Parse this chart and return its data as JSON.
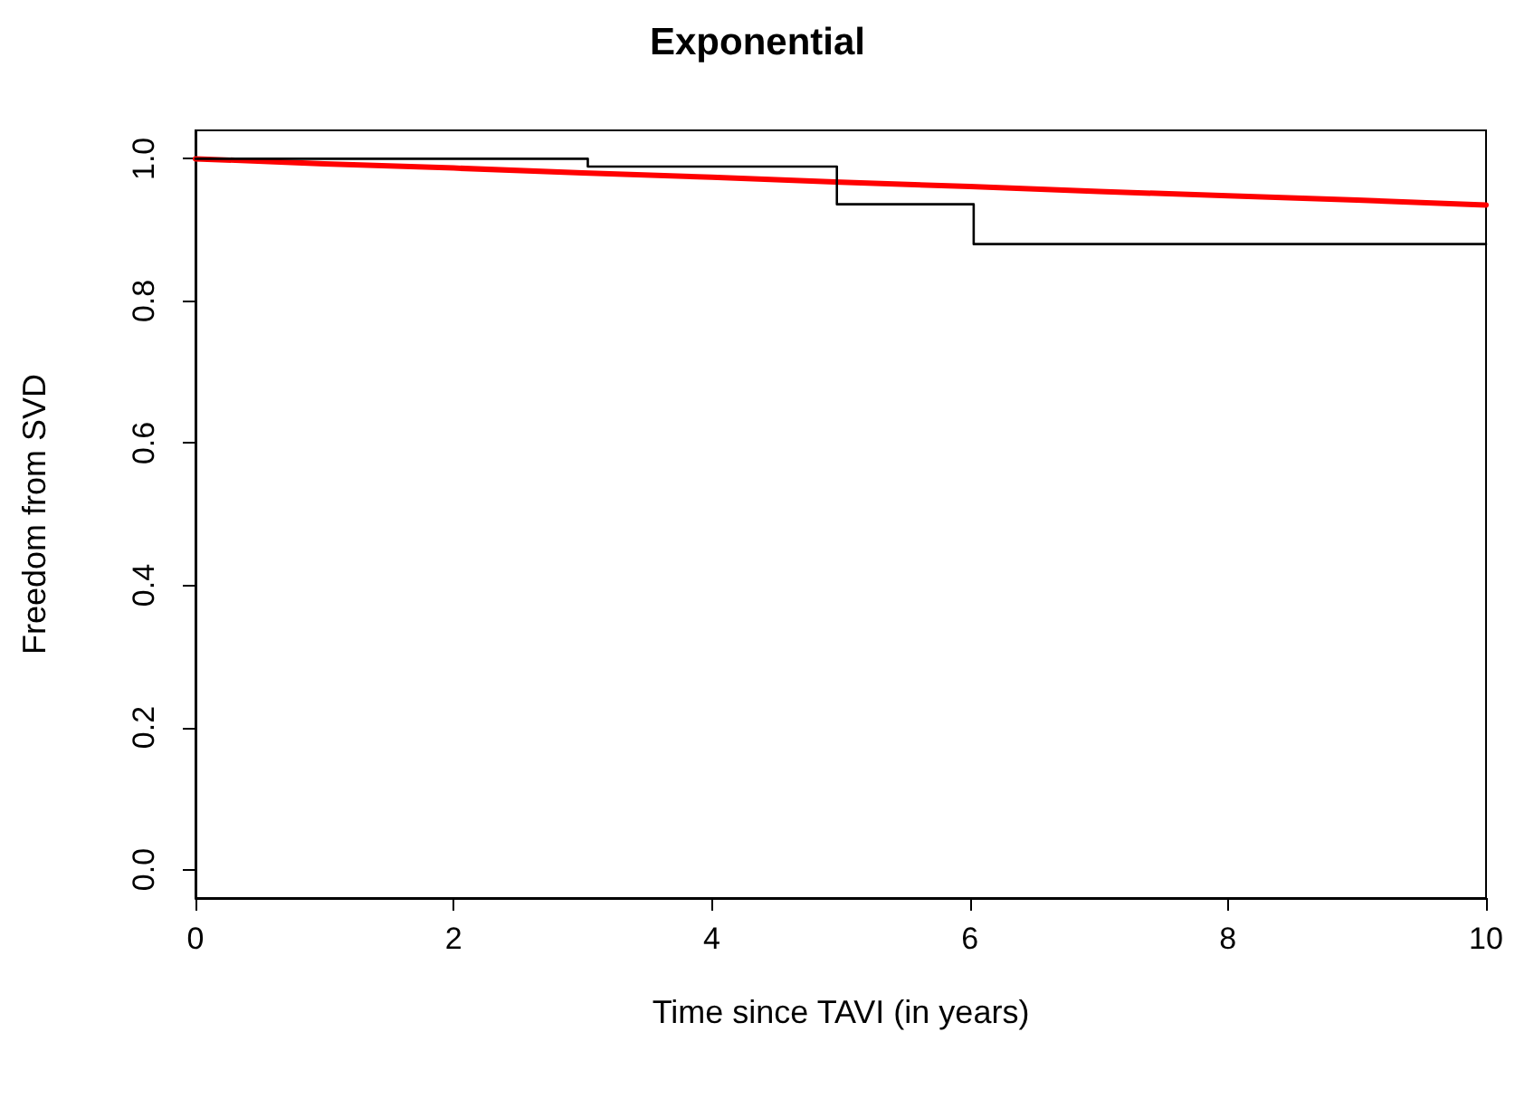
{
  "chart_data": {
    "type": "line",
    "title": "Exponential",
    "xlabel": "Time since TAVI (in years)",
    "ylabel": "Freedom from SVD",
    "xlim": [
      0,
      10
    ],
    "xticks": [
      0,
      2,
      4,
      6,
      8,
      10
    ],
    "ylim": [
      -0.04,
      1.04
    ],
    "yticks": [
      {
        "value": 0,
        "label": "0.0"
      },
      0.2,
      0.4,
      0.6,
      0.8,
      {
        "value": 1,
        "label": "1.0"
      }
    ],
    "grid": false,
    "marker": "none",
    "line_style": "solid",
    "series": [
      {
        "type": "step",
        "color": "#000000",
        "x": [
          0,
          3.04,
          4.97,
          6.03,
          10
        ],
        "values": [
          1.0,
          0.989,
          0.936,
          0.88,
          0.88
        ]
      },
      {
        "color": "#ff0000",
        "x": [
          0,
          1,
          2,
          3,
          4,
          5,
          6,
          7,
          8,
          9,
          10
        ],
        "values": [
          1.0,
          0.993,
          0.987,
          0.98,
          0.974,
          0.967,
          0.961,
          0.954,
          0.948,
          0.942,
          0.935
        ]
      }
    ]
  }
}
